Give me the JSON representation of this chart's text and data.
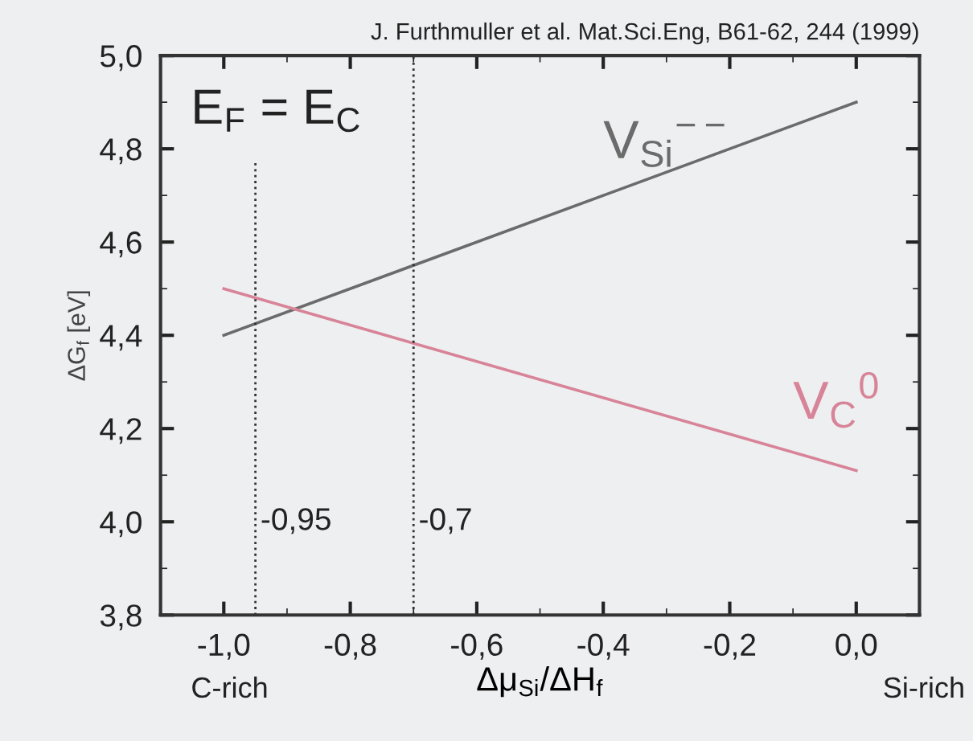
{
  "chart_data": {
    "type": "line",
    "xlabel": "Δμ$_{Si}$/ΔH$_{f}$",
    "ylabel": "ΔG$_{f}$ [eV]",
    "x": [
      -1.0,
      0.0
    ],
    "series": [
      {
        "name": "V$_{Si}$$^{−−}$",
        "color": "#6b6b6b",
        "values": [
          4.4,
          4.9
        ]
      },
      {
        "name": "V$_{C}$$^{0}$",
        "color": "#d88498",
        "values": [
          4.5,
          4.11
        ]
      }
    ],
    "xlim": [
      -1.1,
      0.1
    ],
    "ylim": [
      3.8,
      5.0
    ],
    "xticks": [
      {
        "value": -1.0,
        "label": "-1,0"
      },
      {
        "value": -0.8,
        "label": "-0,8"
      },
      {
        "value": -0.6,
        "label": "-0,6"
      },
      {
        "value": -0.4,
        "label": "-0,4"
      },
      {
        "value": -0.2,
        "label": "-0,2"
      },
      {
        "value": 0.0,
        "label": "0,0"
      }
    ],
    "yticks": [
      {
        "value": 3.8,
        "label": "3,8"
      },
      {
        "value": 4.0,
        "label": "4,0"
      },
      {
        "value": 4.2,
        "label": "4,2"
      },
      {
        "value": 4.4,
        "label": "4,4"
      },
      {
        "value": 4.6,
        "label": "4,6"
      },
      {
        "value": 4.8,
        "label": "4,8"
      },
      {
        "value": 5.0,
        "label": "5,0"
      }
    ],
    "ref_lines": [
      {
        "axis": "x",
        "value": -0.95,
        "label": "-0,95",
        "color": "#333333",
        "line_style": "dotted"
      },
      {
        "axis": "x",
        "value": -0.7,
        "label": "-0,7",
        "color": "#333333",
        "line_style": "dotted"
      }
    ],
    "annotations": [
      "J. Furthmuller et al. Mat.Sci.Eng, B61-62, 244 (1999)",
      "E$_{F}$ = E$_{C}$",
      "C-rich",
      "Si-rich"
    ],
    "grid": false,
    "legend": false,
    "marker": "none",
    "line_style": "solid"
  }
}
